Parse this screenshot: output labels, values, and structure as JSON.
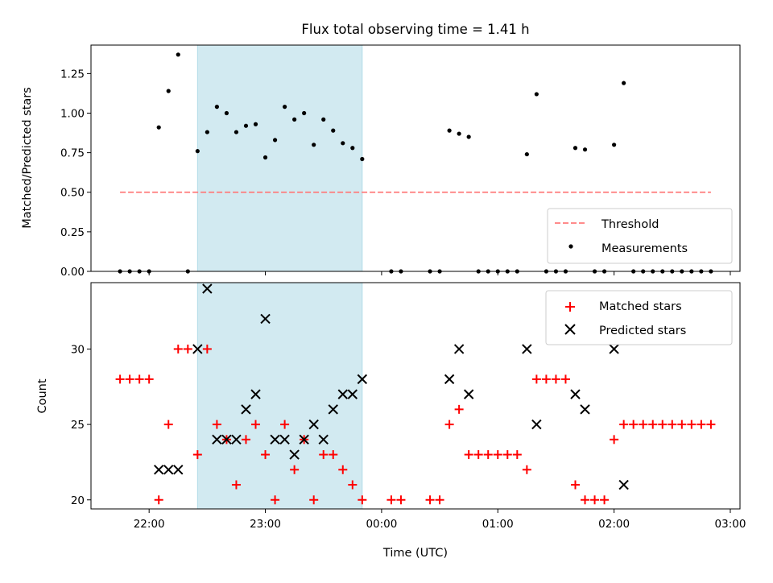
{
  "figure": {
    "title": "Flux total observing time = 1.41 h"
  },
  "chart_data": [
    {
      "type": "scatter",
      "title": "Flux total observing time = 1.41 h",
      "xlabel": "",
      "ylabel": "Matched/Predicted stars",
      "ylim": [
        0,
        1.43
      ],
      "yticks": [
        "0.00",
        "0.25",
        "0.50",
        "0.75",
        "1.00",
        "1.25"
      ],
      "grid": false,
      "legend_placement": "lower-right",
      "shaded_span": {
        "start": "22:25",
        "end": "23:50",
        "color": "#add8e6"
      },
      "threshold": {
        "name": "Threshold",
        "y": 0.5,
        "x_start": "21:45",
        "x_end": "02:50",
        "color": "#ff7b7b"
      },
      "series": [
        {
          "name": "Measurements",
          "color": "#000000",
          "points": [
            [
              "21:45",
              0
            ],
            [
              "21:50",
              0
            ],
            [
              "21:55",
              0
            ],
            [
              "22:00",
              0
            ],
            [
              "22:05",
              0.91
            ],
            [
              "22:10",
              1.14
            ],
            [
              "22:15",
              1.37
            ],
            [
              "22:20",
              0
            ],
            [
              "22:25",
              0.76
            ],
            [
              "22:30",
              0.88
            ],
            [
              "22:35",
              1.04
            ],
            [
              "22:40",
              1.0
            ],
            [
              "22:45",
              0.88
            ],
            [
              "22:50",
              0.92
            ],
            [
              "22:55",
              0.93
            ],
            [
              "23:00",
              0.72
            ],
            [
              "23:05",
              0.83
            ],
            [
              "23:10",
              1.04
            ],
            [
              "23:15",
              0.96
            ],
            [
              "23:20",
              1.0
            ],
            [
              "23:25",
              0.8
            ],
            [
              "23:30",
              0.96
            ],
            [
              "23:35",
              0.89
            ],
            [
              "23:40",
              0.81
            ],
            [
              "23:45",
              0.78
            ],
            [
              "23:50",
              0.71
            ],
            [
              "00:05",
              0
            ],
            [
              "00:10",
              0
            ],
            [
              "00:25",
              0
            ],
            [
              "00:30",
              0
            ],
            [
              "00:35",
              0.89
            ],
            [
              "00:40",
              0.87
            ],
            [
              "00:45",
              0.85
            ],
            [
              "00:50",
              0
            ],
            [
              "00:55",
              0
            ],
            [
              "01:00",
              0
            ],
            [
              "01:05",
              0
            ],
            [
              "01:10",
              0
            ],
            [
              "01:15",
              0.74
            ],
            [
              "01:20",
              1.12
            ],
            [
              "01:25",
              0
            ],
            [
              "01:30",
              0
            ],
            [
              "01:35",
              0
            ],
            [
              "01:40",
              0.78
            ],
            [
              "01:45",
              0.77
            ],
            [
              "01:50",
              0
            ],
            [
              "01:55",
              0
            ],
            [
              "02:00",
              0.8
            ],
            [
              "02:05",
              1.19
            ],
            [
              "02:10",
              0
            ],
            [
              "02:15",
              0
            ],
            [
              "02:20",
              0
            ],
            [
              "02:25",
              0
            ],
            [
              "02:30",
              0
            ],
            [
              "02:35",
              0
            ],
            [
              "02:40",
              0
            ],
            [
              "02:45",
              0
            ],
            [
              "02:50",
              0
            ]
          ]
        }
      ]
    },
    {
      "type": "scatter",
      "title": "",
      "xlabel": "Time (UTC)",
      "ylabel": "Count",
      "ylim": [
        19.4,
        34.4
      ],
      "yticks": [
        "20",
        "25",
        "30"
      ],
      "xlim": [
        "21:30",
        "03:05"
      ],
      "xticks": [
        "22:00",
        "23:00",
        "00:00",
        "01:00",
        "02:00",
        "03:00"
      ],
      "grid": false,
      "legend_placement": "upper-right",
      "shaded_span": {
        "start": "22:25",
        "end": "23:50",
        "color": "#add8e6"
      },
      "series": [
        {
          "name": "Matched stars",
          "color": "#ff0000",
          "marker": "plus",
          "points": [
            [
              "21:45",
              28
            ],
            [
              "21:50",
              28
            ],
            [
              "21:55",
              28
            ],
            [
              "22:00",
              28
            ],
            [
              "22:05",
              20
            ],
            [
              "22:10",
              25
            ],
            [
              "22:15",
              30
            ],
            [
              "22:20",
              30
            ],
            [
              "22:25",
              23
            ],
            [
              "22:30",
              30
            ],
            [
              "22:35",
              25
            ],
            [
              "22:40",
              24
            ],
            [
              "22:45",
              21
            ],
            [
              "22:50",
              24
            ],
            [
              "22:55",
              25
            ],
            [
              "23:00",
              23
            ],
            [
              "23:05",
              20
            ],
            [
              "23:10",
              25
            ],
            [
              "23:15",
              22
            ],
            [
              "23:20",
              24
            ],
            [
              "23:25",
              20
            ],
            [
              "23:30",
              23
            ],
            [
              "23:35",
              23
            ],
            [
              "23:40",
              22
            ],
            [
              "23:45",
              21
            ],
            [
              "23:50",
              20
            ],
            [
              "00:05",
              20
            ],
            [
              "00:10",
              20
            ],
            [
              "00:25",
              20
            ],
            [
              "00:30",
              20
            ],
            [
              "00:35",
              25
            ],
            [
              "00:40",
              26
            ],
            [
              "00:45",
              23
            ],
            [
              "00:50",
              23
            ],
            [
              "00:55",
              23
            ],
            [
              "01:00",
              23
            ],
            [
              "01:05",
              23
            ],
            [
              "01:10",
              23
            ],
            [
              "01:15",
              22
            ],
            [
              "01:20",
              28
            ],
            [
              "01:25",
              28
            ],
            [
              "01:30",
              28
            ],
            [
              "01:35",
              28
            ],
            [
              "01:40",
              21
            ],
            [
              "01:45",
              20
            ],
            [
              "01:50",
              20
            ],
            [
              "01:55",
              20
            ],
            [
              "02:00",
              24
            ],
            [
              "02:05",
              25
            ],
            [
              "02:10",
              25
            ],
            [
              "02:15",
              25
            ],
            [
              "02:20",
              25
            ],
            [
              "02:25",
              25
            ],
            [
              "02:30",
              25
            ],
            [
              "02:35",
              25
            ],
            [
              "02:40",
              25
            ],
            [
              "02:45",
              25
            ],
            [
              "02:50",
              25
            ]
          ]
        },
        {
          "name": "Predicted stars",
          "color": "#000000",
          "marker": "x",
          "points": [
            [
              "22:05",
              22
            ],
            [
              "22:10",
              22
            ],
            [
              "22:15",
              22
            ],
            [
              "22:25",
              30
            ],
            [
              "22:30",
              34
            ],
            [
              "22:35",
              24
            ],
            [
              "22:40",
              24
            ],
            [
              "22:45",
              24
            ],
            [
              "22:50",
              26
            ],
            [
              "22:55",
              27
            ],
            [
              "23:00",
              32
            ],
            [
              "23:05",
              24
            ],
            [
              "23:10",
              24
            ],
            [
              "23:15",
              23
            ],
            [
              "23:20",
              24
            ],
            [
              "23:25",
              25
            ],
            [
              "23:30",
              24
            ],
            [
              "23:35",
              26
            ],
            [
              "23:40",
              27
            ],
            [
              "23:45",
              27
            ],
            [
              "23:50",
              28
            ],
            [
              "00:35",
              28
            ],
            [
              "00:40",
              30
            ],
            [
              "00:45",
              27
            ],
            [
              "01:15",
              30
            ],
            [
              "01:20",
              25
            ],
            [
              "01:40",
              27
            ],
            [
              "01:45",
              26
            ],
            [
              "02:00",
              30
            ],
            [
              "02:05",
              21
            ]
          ]
        }
      ]
    }
  ],
  "legend_top": {
    "threshold_label": "Threshold",
    "measurements_label": "Measurements"
  },
  "legend_bottom": {
    "matched_label": "Matched stars",
    "predicted_label": "Predicted stars"
  }
}
